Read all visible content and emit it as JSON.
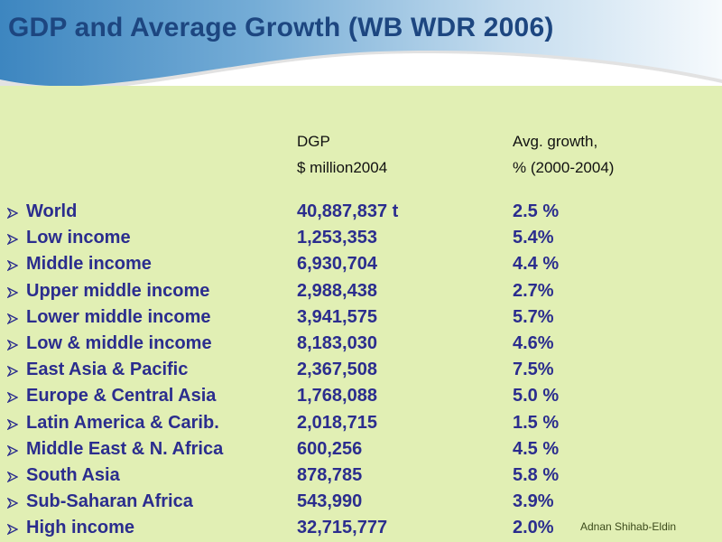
{
  "slide": {
    "title": "GDP and Average Growth (WB WDR 2006)",
    "author": "Adnan Shihab-Eldin"
  },
  "columns": {
    "gdp": {
      "line1": "DGP",
      "line2": "$ million2004"
    },
    "growth": {
      "line1": "Avg. growth,",
      "line2": "% (2000-2004)"
    }
  },
  "rows": [
    {
      "label": "World",
      "gdp": "40,887,837 t",
      "growth": "2.5 %"
    },
    {
      "label": "Low income",
      "gdp": "1,253,353",
      "growth": "5.4%"
    },
    {
      "label": "Middle income",
      "gdp": "6,930,704",
      "growth": "4.4 %"
    },
    {
      "label": "Upper middle income",
      "gdp": "2,988,438",
      "growth": "2.7%"
    },
    {
      "label": "Lower middle income",
      "gdp": "3,941,575",
      "growth": "5.7%"
    },
    {
      "label": "Low & middle income",
      "gdp": "8,183,030",
      "growth": "4.6%"
    },
    {
      "label": "East Asia & Pacific",
      "gdp": "2,367,508",
      "growth": "7.5%"
    },
    {
      "label": "Europe & Central Asia",
      "gdp": "1,768,088",
      "growth": "5.0 %"
    },
    {
      "label": "Latin America & Carib.",
      "gdp": "2,018,715",
      "growth": "1.5 %"
    },
    {
      "label": "Middle East & N. Africa",
      "gdp": "600,256",
      "growth": "4.5 %"
    },
    {
      "label": "South Asia",
      "gdp": "878,785",
      "growth": "5.8 %"
    },
    {
      "label": "Sub-Saharan Africa",
      "gdp": "543,990",
      "growth": "3.9%"
    },
    {
      "label": "High income",
      "gdp": "32,715,777",
      "growth": "2.0%"
    }
  ],
  "colors": {
    "title": "#1d4680",
    "row_text": "#2b2d8e",
    "panel_bg": "#e1efb4",
    "header_blue": "#3d86c0"
  },
  "icons": {
    "bullet": "arrowhead-bullet-icon"
  }
}
